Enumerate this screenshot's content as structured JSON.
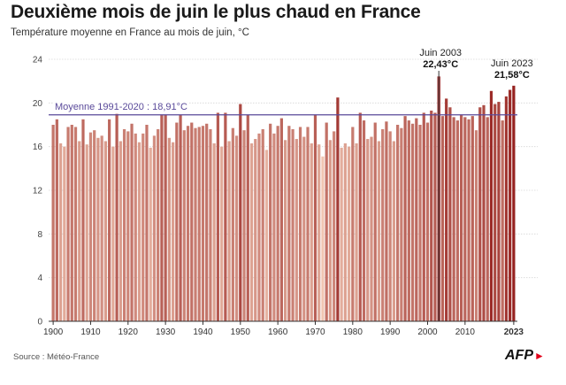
{
  "header": {
    "title": "Deuxième mois de juin le plus chaud en France",
    "subtitle": "Température moyenne en France au mois de juin, °C"
  },
  "footer": {
    "source": "Source : Météo-France",
    "logo": "AFP"
  },
  "colors": {
    "low": "#f2c9b5",
    "high": "#8a0c0c",
    "gridline": "#d6d6d6",
    "average_line": "#5a4a9a",
    "highlight_line": "#555555"
  },
  "chart_data": {
    "type": "bar",
    "x": [
      1900,
      1901,
      1902,
      1903,
      1904,
      1905,
      1906,
      1907,
      1908,
      1909,
      1910,
      1911,
      1912,
      1913,
      1914,
      1915,
      1916,
      1917,
      1918,
      1919,
      1920,
      1921,
      1922,
      1923,
      1924,
      1925,
      1926,
      1927,
      1928,
      1929,
      1930,
      1931,
      1932,
      1933,
      1934,
      1935,
      1936,
      1937,
      1938,
      1939,
      1940,
      1941,
      1942,
      1943,
      1944,
      1945,
      1946,
      1947,
      1948,
      1949,
      1950,
      1951,
      1952,
      1953,
      1954,
      1955,
      1956,
      1957,
      1958,
      1959,
      1960,
      1961,
      1962,
      1963,
      1964,
      1965,
      1966,
      1967,
      1968,
      1969,
      1970,
      1971,
      1972,
      1973,
      1974,
      1975,
      1976,
      1977,
      1978,
      1979,
      1980,
      1981,
      1982,
      1983,
      1984,
      1985,
      1986,
      1987,
      1988,
      1989,
      1990,
      1991,
      1992,
      1993,
      1994,
      1995,
      1996,
      1997,
      1998,
      1999,
      2000,
      2001,
      2002,
      2003,
      2004,
      2005,
      2006,
      2007,
      2008,
      2009,
      2010,
      2011,
      2012,
      2013,
      2014,
      2015,
      2016,
      2017,
      2018,
      2019,
      2020,
      2021,
      2022,
      2023
    ],
    "values": [
      18.0,
      18.5,
      16.3,
      16.0,
      17.8,
      18.0,
      17.8,
      16.5,
      18.5,
      16.2,
      17.3,
      17.5,
      16.8,
      17.0,
      16.5,
      18.5,
      16.0,
      19.0,
      16.5,
      17.6,
      17.4,
      18.1,
      17.2,
      16.4,
      17.2,
      18.0,
      15.9,
      17.0,
      17.6,
      18.9,
      18.9,
      16.8,
      16.4,
      18.2,
      18.9,
      17.5,
      17.9,
      18.2,
      17.7,
      17.8,
      17.9,
      18.1,
      17.6,
      16.3,
      19.1,
      16.0,
      19.1,
      16.5,
      17.7,
      17.0,
      19.9,
      17.5,
      18.9,
      16.3,
      16.7,
      17.2,
      17.6,
      15.7,
      18.1,
      17.2,
      17.9,
      18.6,
      16.6,
      17.9,
      17.6,
      16.7,
      17.8,
      16.9,
      17.8,
      16.3,
      18.9,
      16.2,
      15.1,
      18.2,
      16.6,
      17.4,
      20.5,
      15.9,
      16.3,
      16.0,
      17.8,
      16.3,
      19.1,
      18.4,
      16.7,
      16.9,
      18.2,
      16.5,
      17.6,
      18.3,
      17.4,
      16.5,
      18.0,
      17.7,
      18.8,
      18.4,
      18.1,
      18.6,
      18.0,
      19.1,
      18.2,
      19.3,
      19.1,
      22.43,
      18.8,
      20.4,
      19.6,
      18.7,
      18.4,
      18.9,
      18.7,
      18.5,
      18.8,
      17.5,
      19.6,
      19.8,
      18.7,
      21.1,
      19.9,
      20.1,
      18.4,
      20.6,
      21.2,
      21.58
    ],
    "ylim": [
      0,
      24
    ],
    "yticks": [
      0,
      4,
      8,
      12,
      16,
      20,
      24
    ],
    "xticks": [
      1900,
      1910,
      1920,
      1930,
      1940,
      1950,
      1960,
      1970,
      1980,
      1990,
      2000,
      2010,
      2023
    ],
    "grid": true,
    "average": {
      "label": "Moyenne 1991-2020 : 18,91°C",
      "value": 18.91
    },
    "annotations": [
      {
        "year": 2003,
        "label": "Juin 2003",
        "value_label": "22,43°C"
      },
      {
        "year": 2023,
        "label": "Juin 2023",
        "value_label": "21,58°C"
      }
    ]
  }
}
